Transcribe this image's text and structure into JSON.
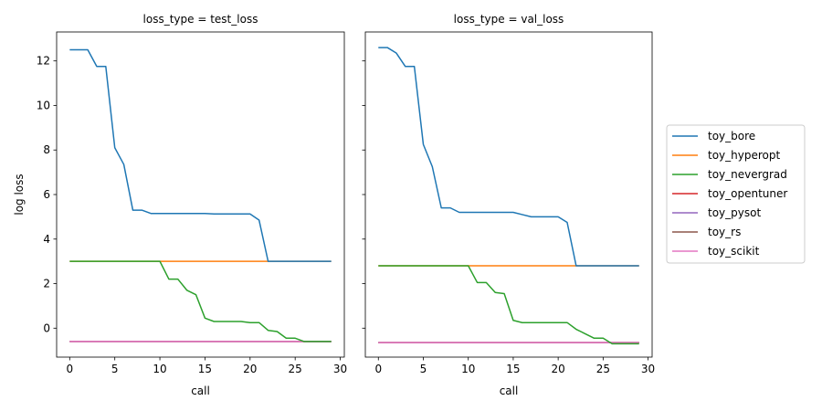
{
  "chart_data": {
    "type": "line",
    "xlabel": "call",
    "ylabel": "log loss",
    "xlim": [
      -1.45,
      30.45
    ],
    "ylim": [
      -1.3,
      13.3
    ],
    "xticks": [
      0,
      5,
      10,
      15,
      20,
      25,
      30
    ],
    "yticks": [
      0,
      2,
      4,
      6,
      8,
      10,
      12
    ],
    "legend_position": "right",
    "grid": false,
    "x": [
      0,
      1,
      2,
      3,
      4,
      5,
      6,
      7,
      8,
      9,
      10,
      11,
      12,
      13,
      14,
      15,
      16,
      17,
      18,
      19,
      20,
      21,
      22,
      23,
      24,
      25,
      26,
      27,
      28,
      29
    ],
    "series_colors": {
      "toy_bore": "#1f77b4",
      "toy_hyperopt": "#ff7f0e",
      "toy_nevergrad": "#2ca02c",
      "toy_opentuner": "#d62728",
      "toy_pysot": "#9467bd",
      "toy_rs": "#8c564b",
      "toy_scikit": "#e377c2"
    },
    "legend": [
      "toy_bore",
      "toy_hyperopt",
      "toy_nevergrad",
      "toy_opentuner",
      "toy_pysot",
      "toy_rs",
      "toy_scikit"
    ],
    "panels": [
      {
        "title": "loss_type = test_loss",
        "series": [
          {
            "name": "toy_opentuner",
            "values": [
              -0.6,
              -0.6,
              -0.6,
              -0.6,
              -0.6,
              -0.6,
              -0.6,
              -0.6,
              -0.6,
              -0.6,
              -0.6,
              -0.6,
              -0.6,
              -0.6,
              -0.6,
              -0.6,
              -0.6,
              -0.6,
              -0.6,
              -0.6,
              -0.6,
              -0.6,
              -0.6,
              -0.6,
              -0.6,
              -0.6,
              -0.6,
              -0.6,
              -0.6,
              -0.6
            ]
          },
          {
            "name": "toy_pysot",
            "values": [
              -0.6,
              -0.6,
              -0.6,
              -0.6,
              -0.6,
              -0.6,
              -0.6,
              -0.6,
              -0.6,
              -0.6,
              -0.6,
              -0.6,
              -0.6,
              -0.6,
              -0.6,
              -0.6,
              -0.6,
              -0.6,
              -0.6,
              -0.6,
              -0.6,
              -0.6,
              -0.6,
              -0.6,
              -0.6,
              -0.6,
              -0.6,
              -0.6,
              -0.6,
              -0.6
            ]
          },
          {
            "name": "toy_rs",
            "values": [
              -0.6,
              -0.6,
              -0.6,
              -0.6,
              -0.6,
              -0.6,
              -0.6,
              -0.6,
              -0.6,
              -0.6,
              -0.6,
              -0.6,
              -0.6,
              -0.6,
              -0.6,
              -0.6,
              -0.6,
              -0.6,
              -0.6,
              -0.6,
              -0.6,
              -0.6,
              -0.6,
              -0.6,
              -0.6,
              -0.6,
              -0.6,
              -0.6,
              -0.6,
              -0.6
            ]
          },
          {
            "name": "toy_scikit",
            "values": [
              -0.6,
              -0.6,
              -0.6,
              -0.6,
              -0.6,
              -0.6,
              -0.6,
              -0.6,
              -0.6,
              -0.6,
              -0.6,
              -0.6,
              -0.6,
              -0.6,
              -0.6,
              -0.6,
              -0.6,
              -0.6,
              -0.6,
              -0.6,
              -0.6,
              -0.6,
              -0.6,
              -0.6,
              -0.6,
              -0.6,
              -0.6,
              -0.6,
              -0.6,
              -0.6
            ]
          },
          {
            "name": "toy_hyperopt",
            "values": [
              3.0,
              3.0,
              3.0,
              3.0,
              3.0,
              3.0,
              3.0,
              3.0,
              3.0,
              3.0,
              3.0,
              3.0,
              3.0,
              3.0,
              3.0,
              3.0,
              3.0,
              3.0,
              3.0,
              3.0,
              3.0,
              3.0,
              3.0,
              3.0,
              3.0,
              3.0,
              3.0,
              3.0,
              3.0,
              3.0
            ]
          },
          {
            "name": "toy_nevergrad",
            "values": [
              3.0,
              3.0,
              3.0,
              3.0,
              3.0,
              3.0,
              3.0,
              3.0,
              3.0,
              3.0,
              3.0,
              2.2,
              2.2,
              1.7,
              1.5,
              0.45,
              0.3,
              0.3,
              0.3,
              0.3,
              0.25,
              0.25,
              -0.1,
              -0.15,
              -0.45,
              -0.45,
              -0.6,
              -0.6,
              -0.6,
              -0.6
            ]
          },
          {
            "name": "toy_bore",
            "values": [
              12.5,
              12.5,
              12.5,
              11.75,
              11.75,
              8.1,
              7.35,
              5.3,
              5.3,
              5.15,
              5.15,
              5.15,
              5.15,
              5.15,
              5.15,
              5.15,
              5.13,
              5.13,
              5.13,
              5.13,
              5.13,
              4.85,
              3.0,
              3.0,
              3.0,
              3.0,
              3.0,
              3.0,
              3.0,
              3.0
            ]
          }
        ]
      },
      {
        "title": "loss_type = val_loss",
        "series": [
          {
            "name": "toy_opentuner",
            "values": [
              -0.65,
              -0.65,
              -0.65,
              -0.65,
              -0.65,
              -0.65,
              -0.65,
              -0.65,
              -0.65,
              -0.65,
              -0.65,
              -0.65,
              -0.65,
              -0.65,
              -0.65,
              -0.65,
              -0.65,
              -0.65,
              -0.65,
              -0.65,
              -0.65,
              -0.65,
              -0.65,
              -0.65,
              -0.65,
              -0.65,
              -0.65,
              -0.65,
              -0.65,
              -0.65
            ]
          },
          {
            "name": "toy_pysot",
            "values": [
              -0.65,
              -0.65,
              -0.65,
              -0.65,
              -0.65,
              -0.65,
              -0.65,
              -0.65,
              -0.65,
              -0.65,
              -0.65,
              -0.65,
              -0.65,
              -0.65,
              -0.65,
              -0.65,
              -0.65,
              -0.65,
              -0.65,
              -0.65,
              -0.65,
              -0.65,
              -0.65,
              -0.65,
              -0.65,
              -0.65,
              -0.65,
              -0.65,
              -0.65,
              -0.65
            ]
          },
          {
            "name": "toy_rs",
            "values": [
              -0.65,
              -0.65,
              -0.65,
              -0.65,
              -0.65,
              -0.65,
              -0.65,
              -0.65,
              -0.65,
              -0.65,
              -0.65,
              -0.65,
              -0.65,
              -0.65,
              -0.65,
              -0.65,
              -0.65,
              -0.65,
              -0.65,
              -0.65,
              -0.65,
              -0.65,
              -0.65,
              -0.65,
              -0.65,
              -0.65,
              -0.65,
              -0.65,
              -0.65,
              -0.65
            ]
          },
          {
            "name": "toy_scikit",
            "values": [
              -0.65,
              -0.65,
              -0.65,
              -0.65,
              -0.65,
              -0.65,
              -0.65,
              -0.65,
              -0.65,
              -0.65,
              -0.65,
              -0.65,
              -0.65,
              -0.65,
              -0.65,
              -0.65,
              -0.65,
              -0.65,
              -0.65,
              -0.65,
              -0.65,
              -0.65,
              -0.65,
              -0.65,
              -0.65,
              -0.65,
              -0.65,
              -0.65,
              -0.65,
              -0.65
            ]
          },
          {
            "name": "toy_hyperopt",
            "values": [
              2.8,
              2.8,
              2.8,
              2.8,
              2.8,
              2.8,
              2.8,
              2.8,
              2.8,
              2.8,
              2.8,
              2.8,
              2.8,
              2.8,
              2.8,
              2.8,
              2.8,
              2.8,
              2.8,
              2.8,
              2.8,
              2.8,
              2.8,
              2.8,
              2.8,
              2.8,
              2.8,
              2.8,
              2.8,
              2.8
            ]
          },
          {
            "name": "toy_nevergrad",
            "values": [
              2.8,
              2.8,
              2.8,
              2.8,
              2.8,
              2.8,
              2.8,
              2.8,
              2.8,
              2.8,
              2.8,
              2.05,
              2.05,
              1.6,
              1.55,
              0.35,
              0.25,
              0.25,
              0.25,
              0.25,
              0.25,
              0.25,
              -0.05,
              -0.25,
              -0.45,
              -0.45,
              -0.7,
              -0.7,
              -0.7,
              -0.7
            ]
          },
          {
            "name": "toy_bore",
            "values": [
              12.6,
              12.6,
              12.35,
              11.75,
              11.75,
              8.25,
              7.25,
              5.4,
              5.4,
              5.2,
              5.2,
              5.2,
              5.2,
              5.2,
              5.2,
              5.2,
              5.1,
              5.0,
              5.0,
              5.0,
              5.0,
              4.75,
              2.8,
              2.8,
              2.8,
              2.8,
              2.8,
              2.8,
              2.8,
              2.8
            ]
          }
        ]
      }
    ]
  }
}
